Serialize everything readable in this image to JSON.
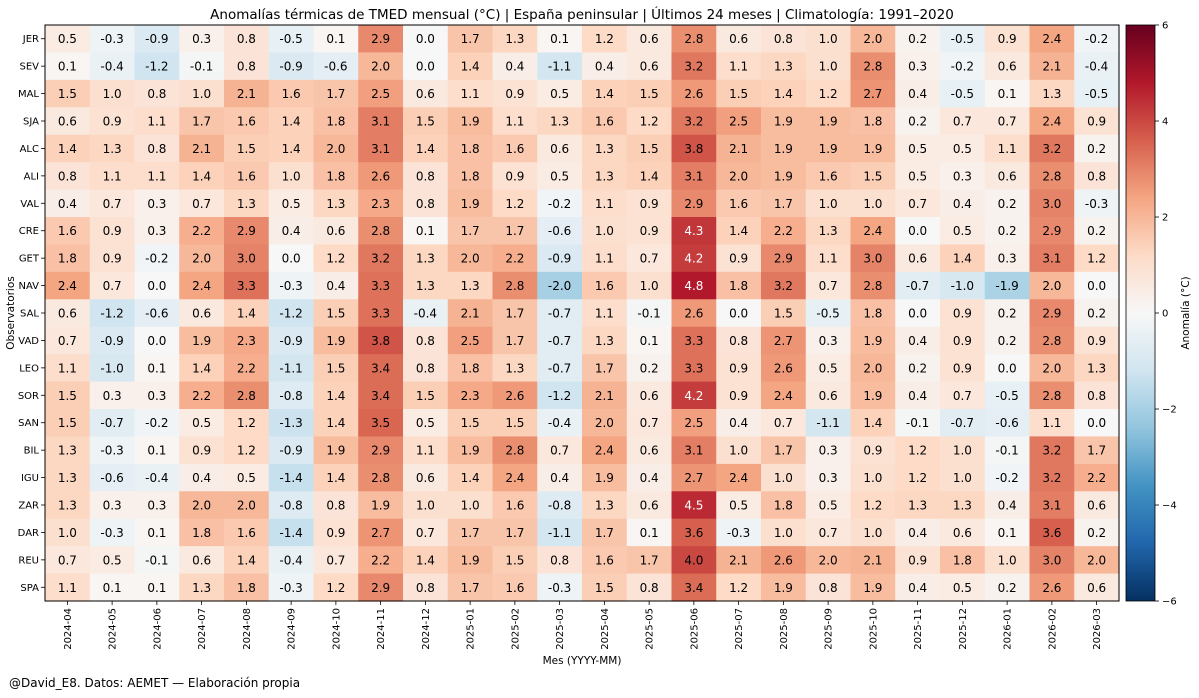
{
  "footer": {
    "credit": "@David_E8. Datos: AEMET — Elaboración propia"
  },
  "chart_data": {
    "type": "heatmap",
    "title": "Anomalías térmicas de TMED mensual (°C) | España peninsular | Últimos 24 meses | Climatología: 1991–2020",
    "xlabel": "Mes (YYYY-MM)",
    "ylabel": "Observatorios",
    "x": [
      "2024-04",
      "2024-05",
      "2024-06",
      "2024-07",
      "2024-08",
      "2024-09",
      "2024-10",
      "2024-11",
      "2024-12",
      "2025-01",
      "2025-02",
      "2025-03",
      "2025-04",
      "2025-05",
      "2025-06",
      "2025-07",
      "2025-08",
      "2025-09",
      "2025-10",
      "2025-11",
      "2025-12",
      "2026-01",
      "2026-02",
      "2026-03"
    ],
    "y": [
      "JER",
      "SEV",
      "MAL",
      "SJA",
      "ALC",
      "ALI",
      "VAL",
      "CRE",
      "GET",
      "NAV",
      "SAL",
      "VAD",
      "LEO",
      "SOR",
      "SAN",
      "BIL",
      "IGU",
      "ZAR",
      "DAR",
      "REU",
      "SPA"
    ],
    "values": [
      [
        0.5,
        -0.3,
        -0.9,
        0.3,
        0.8,
        -0.5,
        0.1,
        2.9,
        0.0,
        1.7,
        1.3,
        0.1,
        1.2,
        0.6,
        2.8,
        0.6,
        0.8,
        1.0,
        2.0,
        0.2,
        -0.5,
        0.9,
        2.4,
        -0.2
      ],
      [
        0.1,
        -0.4,
        -1.2,
        -0.1,
        0.8,
        -0.9,
        -0.6,
        2.0,
        0.0,
        1.4,
        0.4,
        -1.1,
        0.4,
        0.6,
        3.2,
        1.1,
        1.3,
        1.0,
        2.8,
        0.3,
        -0.2,
        0.6,
        2.1,
        -0.4
      ],
      [
        1.5,
        1.0,
        0.8,
        1.0,
        2.1,
        1.6,
        1.7,
        2.5,
        0.6,
        1.1,
        0.9,
        0.5,
        1.4,
        1.5,
        2.6,
        1.5,
        1.4,
        1.2,
        2.7,
        0.4,
        -0.5,
        0.1,
        1.3,
        -0.5
      ],
      [
        0.6,
        0.9,
        1.1,
        1.7,
        1.6,
        1.4,
        1.8,
        3.1,
        1.5,
        1.9,
        1.1,
        1.3,
        1.6,
        1.2,
        3.2,
        2.5,
        1.9,
        1.9,
        1.8,
        0.2,
        0.7,
        0.7,
        2.4,
        0.9
      ],
      [
        1.4,
        1.3,
        0.8,
        2.1,
        1.5,
        1.4,
        2.0,
        3.1,
        1.4,
        1.8,
        1.6,
        0.6,
        1.3,
        1.5,
        3.8,
        2.1,
        1.9,
        1.9,
        1.9,
        0.5,
        0.5,
        1.1,
        3.2,
        0.2
      ],
      [
        0.8,
        1.1,
        1.1,
        1.4,
        1.6,
        1.0,
        1.8,
        2.6,
        0.8,
        1.8,
        0.9,
        0.5,
        1.3,
        1.4,
        3.1,
        2.0,
        1.9,
        1.6,
        1.5,
        0.5,
        0.3,
        0.6,
        2.8,
        0.8
      ],
      [
        0.4,
        0.7,
        0.3,
        0.7,
        1.3,
        0.5,
        1.3,
        2.3,
        0.8,
        1.9,
        1.2,
        -0.2,
        1.1,
        0.9,
        2.9,
        1.6,
        1.7,
        1.0,
        1.0,
        0.7,
        0.4,
        0.2,
        3.0,
        -0.3
      ],
      [
        1.6,
        0.9,
        0.3,
        2.2,
        2.9,
        0.4,
        0.6,
        2.8,
        0.1,
        1.7,
        1.7,
        -0.6,
        1.0,
        0.9,
        4.3,
        1.4,
        2.2,
        1.3,
        2.4,
        0.0,
        0.5,
        0.2,
        2.9,
        0.2
      ],
      [
        1.8,
        0.9,
        -0.2,
        2.0,
        3.0,
        0.0,
        1.2,
        3.2,
        1.3,
        2.0,
        2.2,
        -0.9,
        1.1,
        0.7,
        4.2,
        0.9,
        2.9,
        1.1,
        3.0,
        0.6,
        1.4,
        0.3,
        3.1,
        1.2
      ],
      [
        2.4,
        0.7,
        0.0,
        2.4,
        3.3,
        -0.3,
        0.4,
        3.3,
        1.3,
        1.3,
        2.8,
        -2.0,
        1.6,
        1.0,
        4.8,
        1.8,
        3.2,
        0.7,
        2.8,
        -0.7,
        -1.0,
        -1.9,
        2.0,
        0.0
      ],
      [
        0.6,
        -1.2,
        -0.6,
        0.6,
        1.4,
        -1.2,
        1.5,
        3.3,
        -0.4,
        2.1,
        1.7,
        -0.7,
        1.1,
        -0.1,
        2.6,
        0.0,
        1.5,
        -0.5,
        1.8,
        0.0,
        0.9,
        0.2,
        2.9,
        0.2
      ],
      [
        0.7,
        -0.9,
        0.0,
        1.9,
        2.3,
        -0.9,
        1.9,
        3.8,
        0.8,
        2.5,
        1.7,
        -0.7,
        1.3,
        0.1,
        3.3,
        0.8,
        2.7,
        0.3,
        1.9,
        0.4,
        0.9,
        0.2,
        2.8,
        0.9
      ],
      [
        1.1,
        -1.0,
        0.1,
        1.4,
        2.2,
        -1.1,
        1.5,
        3.4,
        0.8,
        1.8,
        1.3,
        -0.7,
        1.7,
        0.2,
        3.3,
        0.9,
        2.6,
        0.5,
        2.0,
        0.2,
        0.9,
        0.0,
        2.0,
        1.3
      ],
      [
        1.5,
        0.3,
        0.3,
        2.2,
        2.8,
        -0.8,
        1.4,
        3.4,
        1.5,
        2.3,
        2.6,
        -1.2,
        2.1,
        0.6,
        4.2,
        0.9,
        2.4,
        0.6,
        1.9,
        0.4,
        0.7,
        -0.5,
        2.8,
        0.8
      ],
      [
        1.5,
        -0.7,
        -0.2,
        0.5,
        1.2,
        -1.3,
        1.4,
        3.5,
        0.5,
        1.5,
        1.5,
        -0.4,
        2.0,
        0.7,
        2.5,
        0.4,
        0.7,
        -1.1,
        1.4,
        -0.1,
        -0.7,
        -0.6,
        1.1,
        0.0
      ],
      [
        1.3,
        -0.3,
        0.1,
        0.9,
        1.2,
        -0.9,
        1.9,
        2.9,
        1.1,
        1.9,
        2.8,
        0.7,
        2.4,
        0.6,
        3.1,
        1.0,
        1.7,
        0.3,
        0.9,
        1.2,
        1.0,
        -0.1,
        3.2,
        1.7
      ],
      [
        1.3,
        -0.6,
        -0.4,
        0.4,
        0.5,
        -1.4,
        1.4,
        2.8,
        0.6,
        1.4,
        2.4,
        0.4,
        1.9,
        0.4,
        2.7,
        2.4,
        1.0,
        0.3,
        1.0,
        1.2,
        1.0,
        -0.2,
        3.2,
        2.2
      ],
      [
        1.3,
        0.3,
        0.3,
        2.0,
        2.0,
        -0.8,
        0.8,
        1.9,
        1.0,
        1.0,
        1.6,
        -0.8,
        1.3,
        0.6,
        4.5,
        0.5,
        1.8,
        0.5,
        1.2,
        1.3,
        1.3,
        0.4,
        3.1,
        0.6
      ],
      [
        1.0,
        -0.3,
        0.1,
        1.8,
        1.6,
        -1.4,
        0.9,
        2.7,
        0.7,
        1.7,
        1.7,
        -1.1,
        1.7,
        0.1,
        3.6,
        -0.3,
        1.0,
        0.7,
        1.0,
        0.4,
        0.6,
        0.1,
        3.6,
        0.2
      ],
      [
        0.7,
        0.5,
        -0.1,
        0.6,
        1.4,
        -0.4,
        0.7,
        2.2,
        1.4,
        1.9,
        1.5,
        0.8,
        1.6,
        1.7,
        4.0,
        2.1,
        2.6,
        2.0,
        2.1,
        0.9,
        1.8,
        1.0,
        3.0,
        2.0
      ],
      [
        1.1,
        0.1,
        0.1,
        1.3,
        1.8,
        -0.3,
        1.2,
        2.9,
        0.8,
        1.7,
        1.6,
        -0.3,
        1.5,
        0.8,
        3.4,
        1.2,
        1.9,
        0.8,
        1.9,
        0.4,
        0.5,
        0.2,
        2.6,
        0.6
      ]
    ],
    "colorbar": {
      "label": "Anomalía (°C)",
      "ticks": [
        6,
        4,
        2,
        0,
        -2,
        -4,
        -6
      ],
      "range": [
        -6,
        6
      ]
    },
    "colormap": [
      "#053061",
      "#2166ac",
      "#4393c3",
      "#92c5de",
      "#d1e5f0",
      "#f7f7f7",
      "#fddbc7",
      "#f4a582",
      "#d6604d",
      "#b2182b",
      "#67001f"
    ]
  }
}
